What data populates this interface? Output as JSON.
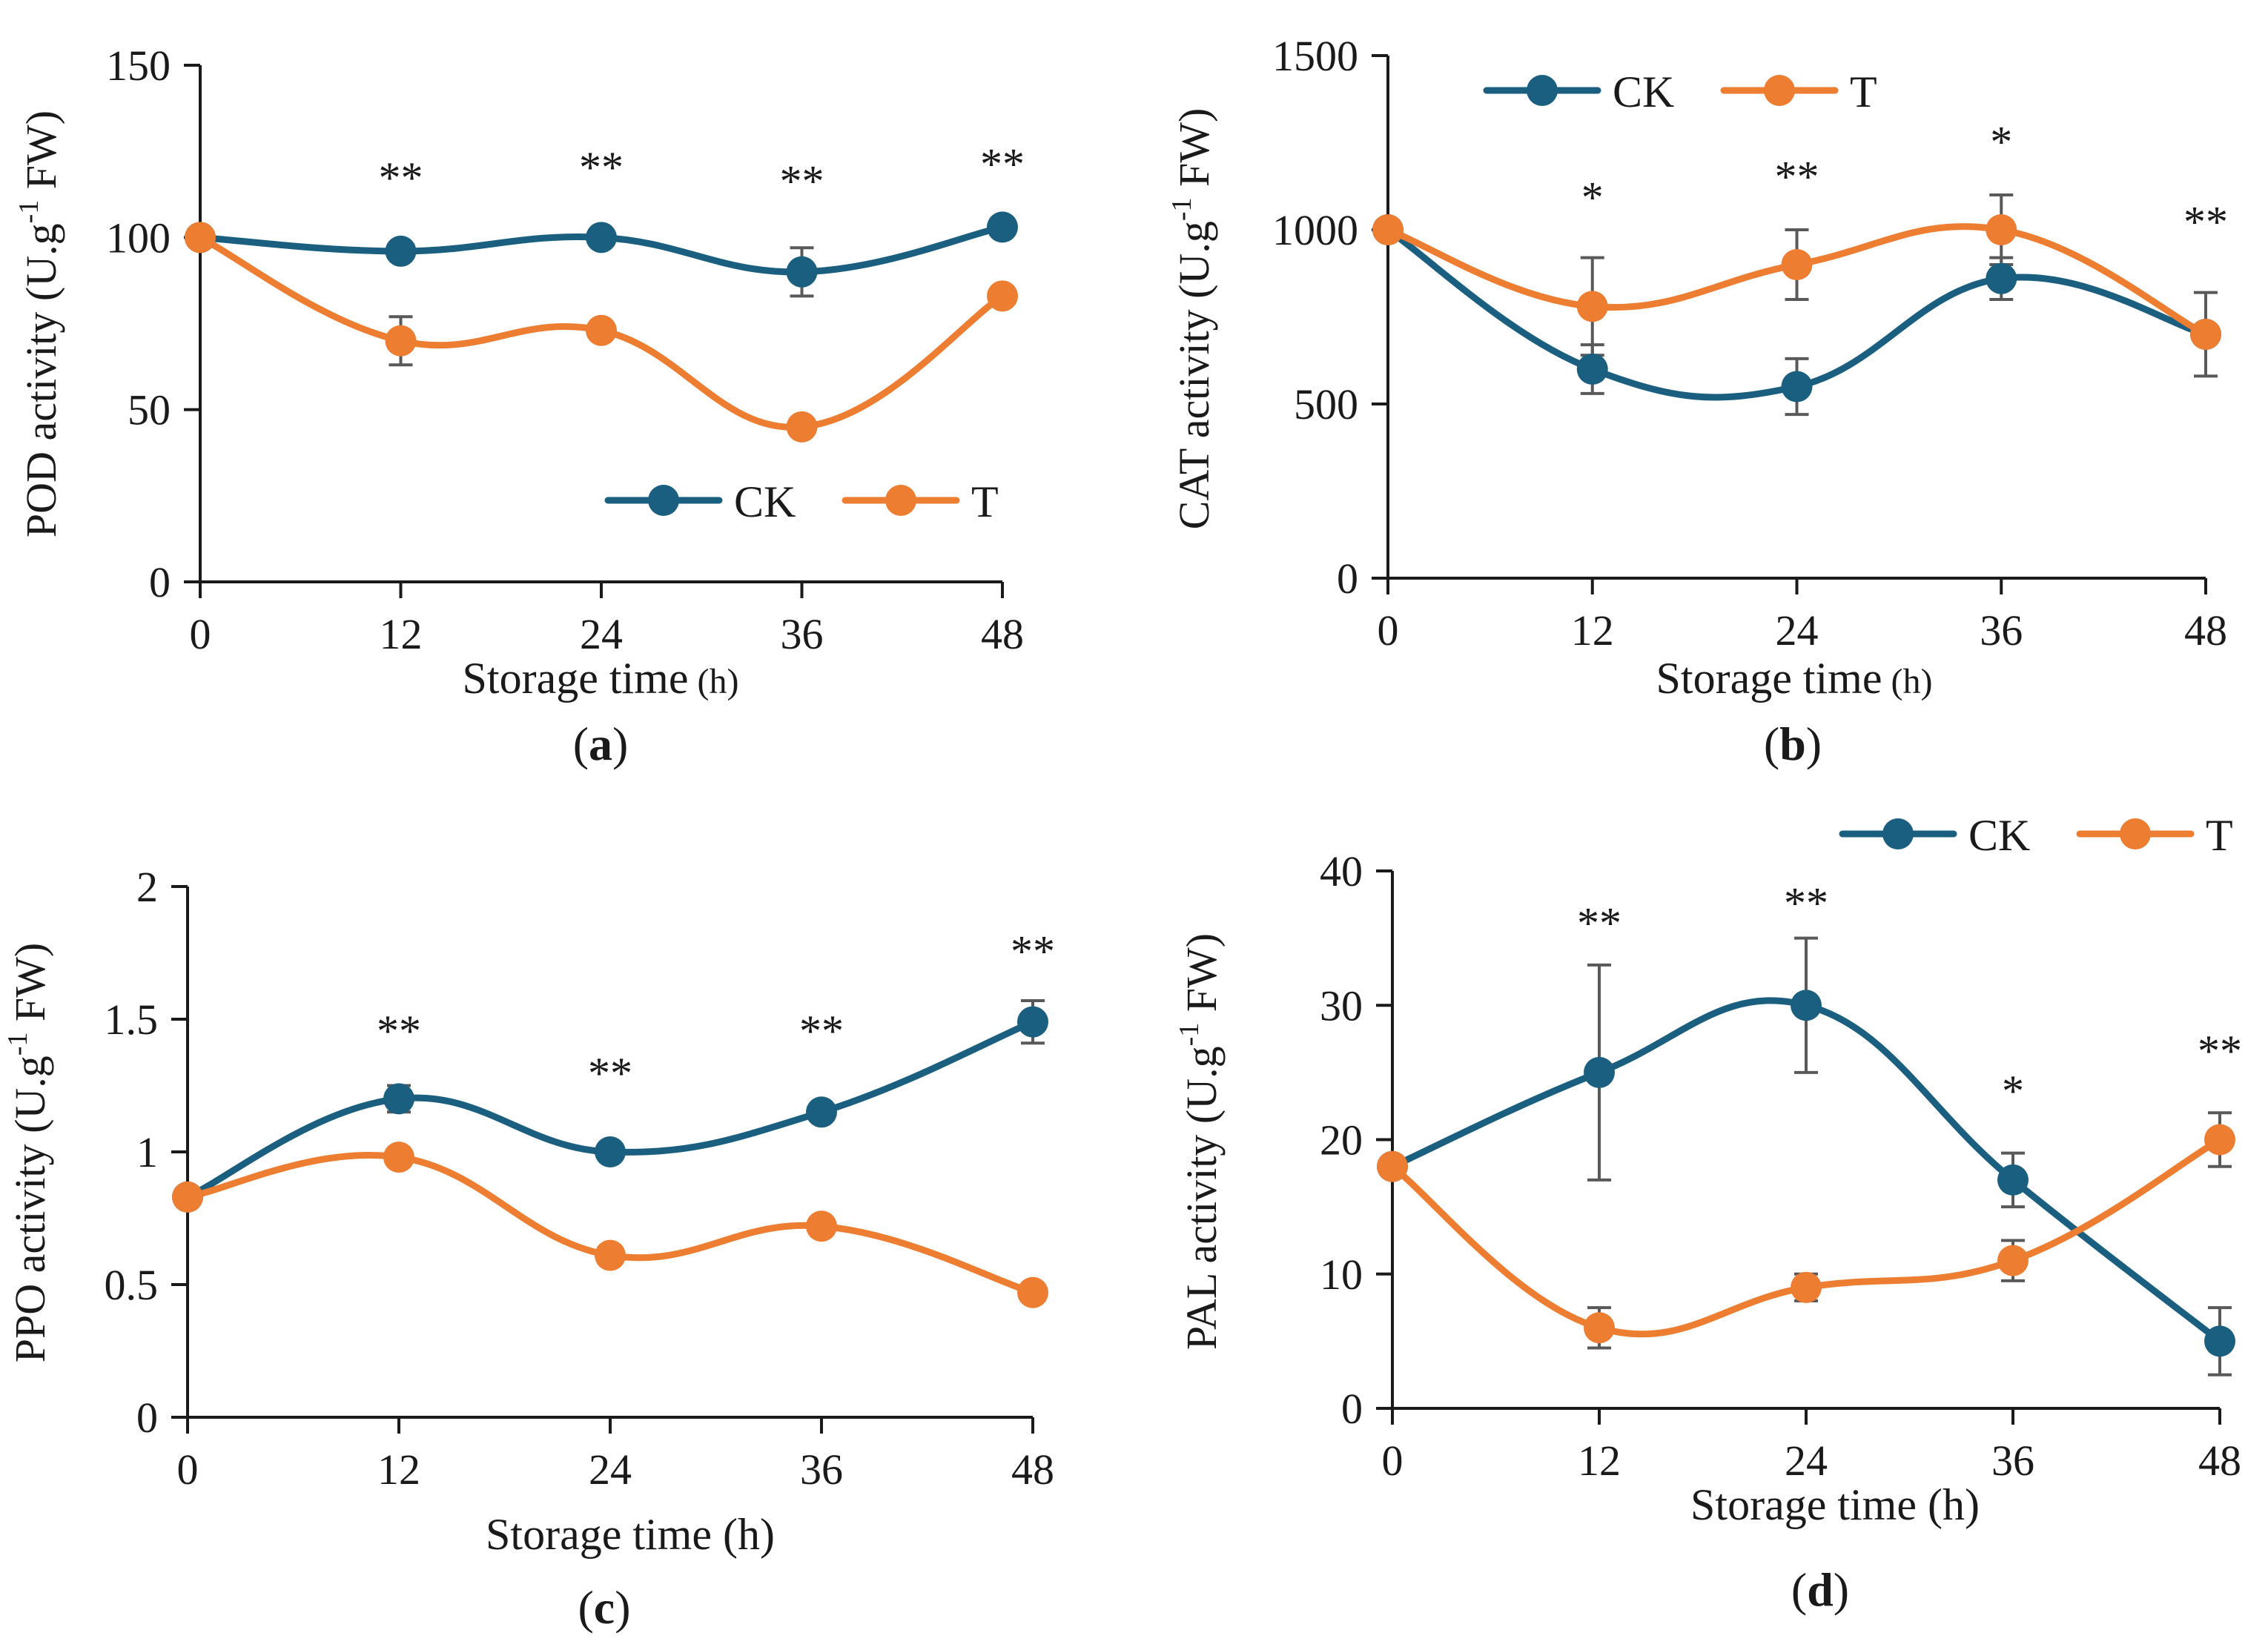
{
  "colors": {
    "ck": "#1a5f7f",
    "t": "#ed7d31",
    "axis": "#1a1a1a",
    "error": "#595959"
  },
  "chart_data": [
    {
      "type": "line",
      "panel_label": "a",
      "xlabel": "Storage time",
      "xlabel_unit": "(h)",
      "ylabel": "POD activity (U.g",
      "ylabel_sup": "-1",
      "ylabel_tail": " FW)",
      "x": [
        0,
        12,
        24,
        36,
        48
      ],
      "x_ticks": [
        "0",
        "12",
        "24",
        "36",
        "48"
      ],
      "ylim": [
        0,
        150
      ],
      "y_ticks": [
        0,
        50,
        100,
        150
      ],
      "y_tick_labels": [
        "0",
        "50",
        "100",
        "150"
      ],
      "legend_position": "lower-right",
      "series": [
        {
          "name": "CK",
          "values": [
            100,
            96,
            100,
            90,
            103
          ],
          "errors": [
            0,
            0,
            0,
            7,
            0
          ]
        },
        {
          "name": "T",
          "values": [
            100,
            70,
            73,
            45,
            83
          ],
          "errors": [
            0,
            7,
            0,
            0,
            0
          ]
        }
      ],
      "significance": [
        "",
        "**",
        "**",
        "**",
        "**"
      ],
      "sig_y": [
        null,
        113,
        116,
        112,
        117
      ]
    },
    {
      "type": "line",
      "panel_label": "b",
      "xlabel": "Storage time",
      "xlabel_unit": "(h)",
      "ylabel": "CAT activity (U.g",
      "ylabel_sup": "-1",
      "ylabel_tail": " FW)",
      "x": [
        0,
        12,
        24,
        36,
        48
      ],
      "x_ticks": [
        "0",
        "12",
        "24",
        "36",
        "48"
      ],
      "ylim": [
        0,
        1500
      ],
      "y_ticks": [
        0,
        500,
        1000,
        1500
      ],
      "y_tick_labels": [
        "0",
        "500",
        "1000",
        "1500"
      ],
      "legend_position": "top-left",
      "series": [
        {
          "name": "CK",
          "values": [
            1000,
            600,
            550,
            860,
            700
          ],
          "errors": [
            0,
            70,
            80,
            60,
            120
          ]
        },
        {
          "name": "T",
          "values": [
            1000,
            780,
            900,
            1000,
            700
          ],
          "errors": [
            0,
            140,
            100,
            100,
            0
          ]
        }
      ],
      "significance": [
        "",
        "*",
        "**",
        "*",
        "**"
      ],
      "sig_y": [
        null,
        1050,
        1110,
        1210,
        980
      ]
    },
    {
      "type": "line",
      "panel_label": "c",
      "xlabel": "Storage time (h)",
      "ylabel": "PPO activity (U.g",
      "ylabel_sup": "-1",
      "ylabel_tail": " FW)",
      "x": [
        0,
        12,
        24,
        36,
        48
      ],
      "x_ticks": [
        "0",
        "12",
        "24",
        "36",
        "48"
      ],
      "ylim": [
        0,
        2
      ],
      "y_ticks": [
        0,
        0.5,
        1,
        1.5,
        2
      ],
      "y_tick_labels": [
        "0",
        "0.5",
        "1",
        "1.5",
        "2"
      ],
      "legend_position": "none",
      "series": [
        {
          "name": "CK",
          "values": [
            0.83,
            1.2,
            1.0,
            1.15,
            1.49
          ],
          "errors": [
            0,
            0.05,
            0,
            0,
            0.08
          ]
        },
        {
          "name": "T",
          "values": [
            0.83,
            0.98,
            0.61,
            0.72,
            0.47
          ],
          "errors": [
            0,
            0,
            0,
            0,
            0
          ]
        }
      ],
      "significance": [
        "",
        "**",
        "**",
        "**",
        "**"
      ],
      "sig_y": [
        null,
        1.4,
        1.24,
        1.4,
        1.7
      ]
    },
    {
      "type": "line",
      "panel_label": "d",
      "xlabel": "Storage time (h)",
      "ylabel": "PAL activity (U.g",
      "ylabel_sup": "-1",
      "ylabel_tail": " FW)",
      "x": [
        0,
        12,
        24,
        36,
        48
      ],
      "x_ticks": [
        "0",
        "12",
        "24",
        "36",
        "48"
      ],
      "ylim": [
        0,
        40
      ],
      "y_ticks": [
        0,
        10,
        20,
        30,
        40
      ],
      "y_tick_labels": [
        "0",
        "10",
        "20",
        "30",
        "40"
      ],
      "legend_position": "above-top-right",
      "series": [
        {
          "name": "CK",
          "values": [
            18,
            25,
            30,
            17,
            5
          ],
          "errors": [
            0,
            8,
            5,
            2,
            2.5
          ]
        },
        {
          "name": "T",
          "values": [
            18,
            6,
            9,
            11,
            20
          ],
          "errors": [
            0,
            1.5,
            1,
            1.5,
            2
          ]
        }
      ],
      "significance": [
        "",
        "**",
        "**",
        "*",
        "**"
      ],
      "sig_y": [
        null,
        35,
        36.5,
        22.5,
        25.5
      ]
    }
  ]
}
